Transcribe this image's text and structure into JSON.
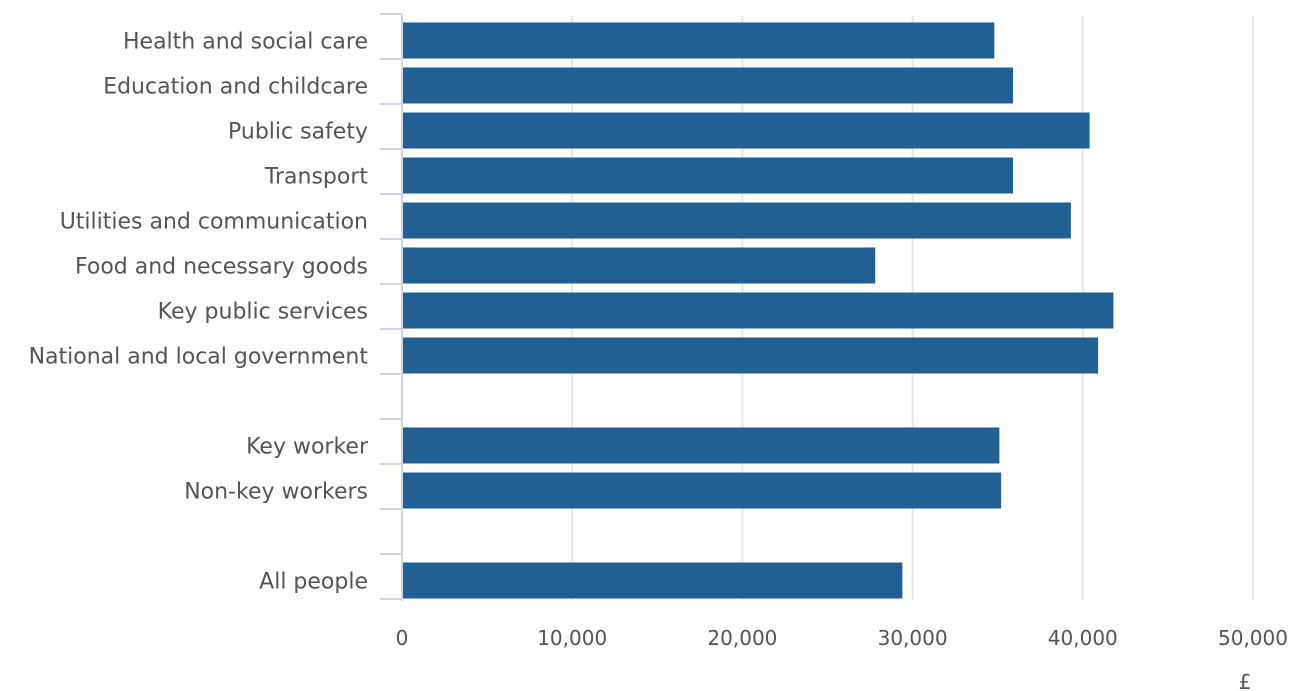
{
  "chart_data": {
    "type": "bar",
    "orientation": "horizontal",
    "categories": [
      "Health and social care",
      "Education and childcare",
      "Public safety",
      "Transport",
      "Utilities and communication",
      "Food and necessary goods",
      "Key public services",
      "National and local government",
      "",
      "Key worker",
      "Non-key workers",
      "",
      "All people"
    ],
    "values": [
      34800,
      35900,
      40400,
      35900,
      39300,
      27800,
      41800,
      40900,
      null,
      35100,
      35200,
      null,
      29400
    ],
    "xlim": [
      0,
      50000
    ],
    "x_ticks": [
      "0",
      "10,000",
      "20,000",
      "30,000",
      "40,000",
      "50,000"
    ],
    "x_tick_values": [
      0,
      10000,
      20000,
      30000,
      40000,
      50000
    ],
    "xlabel": "£",
    "ylabel": "",
    "title": "",
    "grid": true,
    "bar_color": "#206095"
  }
}
